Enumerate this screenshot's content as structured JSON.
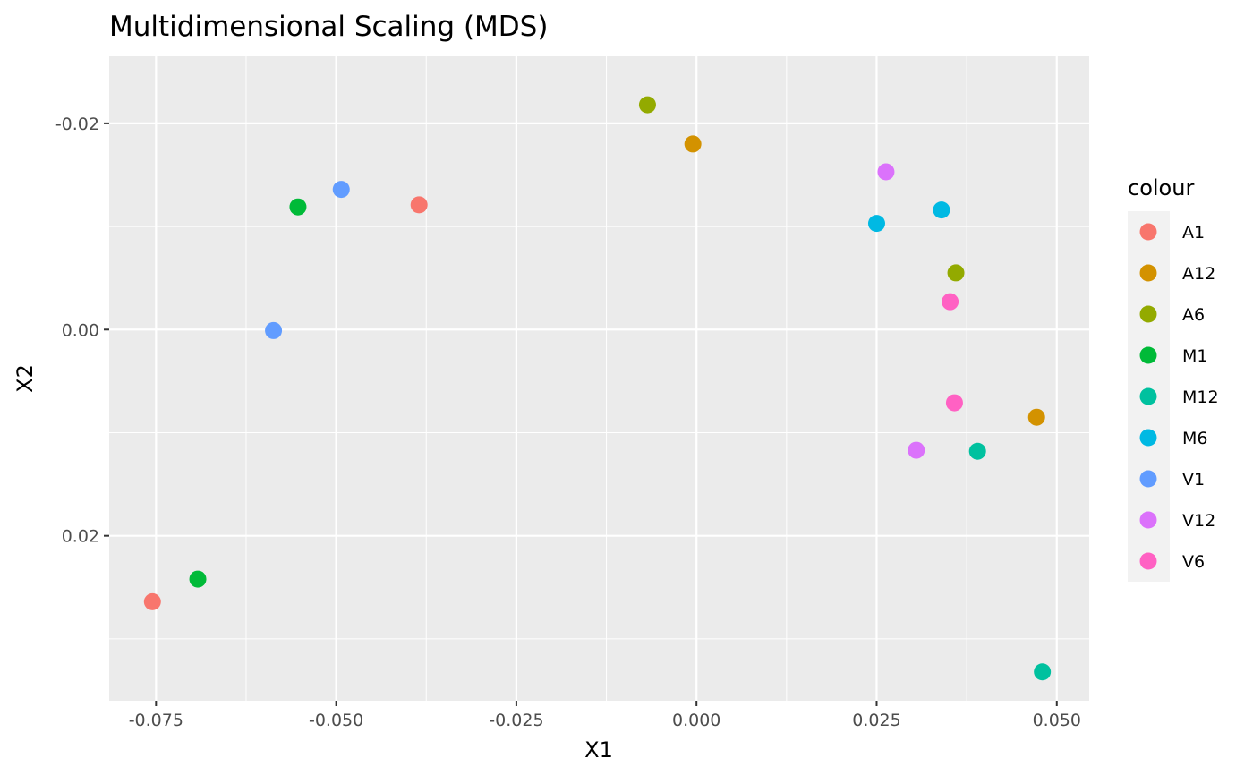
{
  "chart_data": {
    "type": "scatter",
    "title": "Multidimensional Scaling (MDS)",
    "xlabel": "X1",
    "ylabel": "X2",
    "xlim": [
      -0.0815,
      0.0545
    ],
    "ylim": [
      -0.0265,
      0.036
    ],
    "y_reversed": true,
    "x_ticks": [
      -0.075,
      -0.05,
      -0.025,
      0.0,
      0.025,
      0.05
    ],
    "x_tick_labels": [
      "-0.075",
      "-0.050",
      "-0.025",
      "0.000",
      "0.025",
      "0.050"
    ],
    "y_ticks": [
      -0.02,
      0.0,
      0.02
    ],
    "y_tick_labels": [
      "-0.02",
      "0.00",
      "0.02"
    ],
    "grid": true,
    "panel_background": "#ebebeb",
    "legend": {
      "title": "colour",
      "position": "right"
    },
    "series": [
      {
        "name": "A1",
        "color": "#F8766D",
        "points": [
          [
            -0.0755,
            0.0264
          ],
          [
            -0.0385,
            -0.0121
          ]
        ]
      },
      {
        "name": "A12",
        "color": "#D39200",
        "points": [
          [
            -0.0005,
            -0.018
          ],
          [
            0.0472,
            0.0085
          ]
        ]
      },
      {
        "name": "A6",
        "color": "#93AA00",
        "points": [
          [
            -0.0068,
            -0.0218
          ],
          [
            0.036,
            -0.0055
          ]
        ]
      },
      {
        "name": "M1",
        "color": "#00BA38",
        "points": [
          [
            -0.0692,
            0.0242
          ],
          [
            -0.0553,
            -0.0119
          ]
        ]
      },
      {
        "name": "M12",
        "color": "#00C19F",
        "points": [
          [
            0.039,
            0.0118
          ],
          [
            0.048,
            0.0332
          ]
        ]
      },
      {
        "name": "M6",
        "color": "#00B9E3",
        "points": [
          [
            0.025,
            -0.0103
          ],
          [
            0.034,
            -0.0116
          ]
        ]
      },
      {
        "name": "V1",
        "color": "#619CFF",
        "points": [
          [
            -0.0587,
            0.0001
          ],
          [
            -0.0493,
            -0.0136
          ]
        ]
      },
      {
        "name": "V12",
        "color": "#DB72FB",
        "points": [
          [
            0.0263,
            -0.0153
          ],
          [
            0.0305,
            0.0117
          ]
        ]
      },
      {
        "name": "V6",
        "color": "#FF61C3",
        "points": [
          [
            0.0352,
            -0.0027
          ],
          [
            0.0358,
            0.0071
          ]
        ]
      }
    ]
  }
}
